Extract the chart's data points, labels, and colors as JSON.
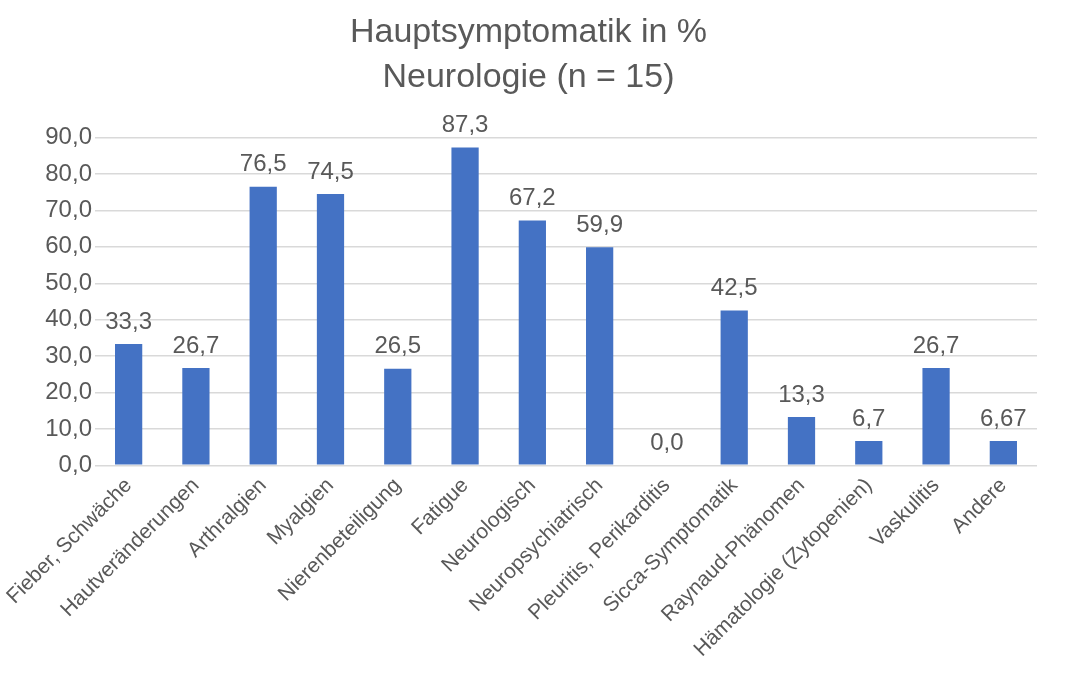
{
  "chart_data": {
    "type": "bar",
    "title": "Hauptsymptomatik in %",
    "subtitle": "Neurologie (n = 15)",
    "categories": [
      "Fieber, Schwäche",
      "Hautveränderungen",
      "Arthralgien",
      "Myalgien",
      "Nierenbeteiligung",
      "Fatigue",
      "Neurologisch",
      "Neuropsychiatrisch",
      "Pleuritis, Perikarditis",
      "Sicca-Symptomatik",
      "Raynaud-Phänomen",
      "Hämatologie (Zytopenien)",
      "Vaskulitis",
      "Andere"
    ],
    "values": [
      33.3,
      26.7,
      76.5,
      74.5,
      26.5,
      87.3,
      67.2,
      59.9,
      0.0,
      42.5,
      13.3,
      6.7,
      26.7,
      6.67
    ],
    "value_labels": [
      "33,3",
      "26,7",
      "76,5",
      "74,5",
      "26,5",
      "87,3",
      "67,2",
      "59,9",
      "0,0",
      "42,5",
      "13,3",
      "6,7",
      "26,7",
      "6,67"
    ],
    "color": "#4472c4",
    "ylim": [
      0,
      90
    ],
    "yticks": [
      {
        "value": 0,
        "label": "0,0"
      },
      {
        "value": 10,
        "label": "10,0"
      },
      {
        "value": 20,
        "label": "20,0"
      },
      {
        "value": 30,
        "label": "30,0"
      },
      {
        "value": 40,
        "label": "40,0"
      },
      {
        "value": 50,
        "label": "50,0"
      },
      {
        "value": 60,
        "label": "60,0"
      },
      {
        "value": 70,
        "label": "70,0"
      },
      {
        "value": 80,
        "label": "80,0"
      },
      {
        "value": 90,
        "label": "90,0"
      }
    ],
    "grid": "y"
  }
}
